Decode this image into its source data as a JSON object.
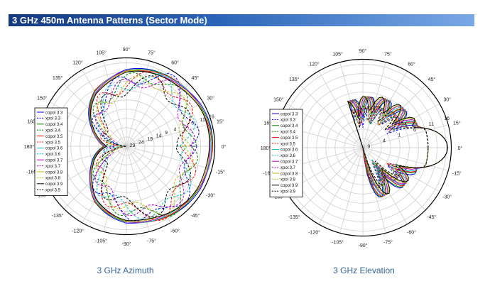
{
  "header": {
    "title": "3 GHz 450m Antenna Patterns (Sector Mode)"
  },
  "colors": {
    "header_dark": "#14397f",
    "header_light": "#7aa8e6",
    "caption": "#34659a"
  },
  "captions": {
    "azimuth": "3 GHz Azimuth",
    "elevation": "3 GHz Elevation"
  },
  "chart_data": [
    {
      "type": "polar-line",
      "title": "3 GHz Azimuth",
      "angle_labels": [
        "0°",
        "15°",
        "30°",
        "45°",
        "60°",
        "75°",
        "90°",
        "105°",
        "120°",
        "135°",
        "150°",
        "165°",
        "180°",
        "-165°",
        "-150°",
        "-135°",
        "-120°",
        "-105°",
        "-90°",
        "-75°",
        "-60°",
        "-45°",
        "-30°",
        "-15°"
      ],
      "radial_labels": [
        "16",
        "11",
        "6",
        "1",
        "4",
        "9",
        "14",
        "19",
        "24",
        "29"
      ],
      "legend_placement": "left",
      "grid": true,
      "series_names": [
        "copol 3.3",
        "xpol 3.3",
        "copol 3.4",
        "xpol 3.4",
        "copol 3.5",
        "xpol 3.5",
        "copol 3.6",
        "xpol 3.6",
        "copol 3.7",
        "xpol 3.7",
        "copol 3.8",
        "xpol 3.8",
        "copol 3.9",
        "xpol 3.9"
      ],
      "series_colors": [
        "#0000ff",
        "#0000ff",
        "#008000",
        "#008000",
        "#ff0000",
        "#ff0000",
        "#00bfbf",
        "#00bfbf",
        "#bf00bf",
        "#bf00bf",
        "#bfbf00",
        "#bfbf00",
        "#000000",
        "#000000"
      ],
      "series_dashed": [
        false,
        true,
        false,
        true,
        false,
        true,
        false,
        true,
        false,
        true,
        false,
        true,
        false,
        true
      ],
      "copol_gain_by_angle": {
        "angles": [
          0,
          30,
          60,
          90,
          120,
          150,
          180,
          210,
          240,
          270,
          300,
          330
        ],
        "values": [
          16,
          15.5,
          13.5,
          11,
          4,
          -8,
          -18,
          -8,
          4,
          11,
          13.5,
          15.5
        ]
      },
      "xpol_gain_by_angle": {
        "angles": [
          0,
          30,
          60,
          90,
          120,
          150,
          180,
          210,
          240,
          270,
          300,
          330
        ],
        "values": [
          4,
          8,
          12,
          5,
          -2,
          -14,
          -25,
          -14,
          -2,
          5,
          12,
          8
        ]
      }
    },
    {
      "type": "polar-line",
      "title": "3 GHz Elevation",
      "angle_labels": [
        "0°",
        "15°",
        "30°",
        "45°",
        "60°",
        "75°",
        "90°",
        "105°",
        "120°",
        "135°",
        "150°",
        "165°",
        "180°",
        "-165°",
        "-150°",
        "-135°",
        "-120°",
        "-105°",
        "-90°",
        "-75°",
        "-60°",
        "-45°",
        "-30°",
        "-15°"
      ],
      "radial_labels": [
        "16",
        "11",
        "6",
        "1",
        "4",
        "9"
      ],
      "legend_placement": "left",
      "grid": true,
      "series_names": [
        "copol 3.3",
        "xpol 3.3",
        "copol 3.4",
        "xpol 3.4",
        "copol 3.5",
        "xpol 3.5",
        "copol 3.6",
        "xpol 3.6",
        "copol 3.7",
        "xpol 3.7",
        "copol 3.8",
        "xpol 3.8",
        "copol 3.9",
        "xpol 3.9"
      ],
      "series_colors": [
        "#0000ff",
        "#0000ff",
        "#008000",
        "#008000",
        "#ff0000",
        "#ff0000",
        "#00bfbf",
        "#00bfbf",
        "#bf00bf",
        "#bf00bf",
        "#bfbf00",
        "#bfbf00",
        "#000000",
        "#000000"
      ],
      "series_dashed": [
        false,
        true,
        false,
        true,
        false,
        true,
        false,
        true,
        false,
        true,
        false,
        true,
        false,
        true
      ],
      "copol_main_lobe_peak": 16,
      "sidelobe_peak_angles": [
        -70,
        -45,
        -25,
        20,
        40,
        60,
        80,
        100
      ]
    }
  ]
}
